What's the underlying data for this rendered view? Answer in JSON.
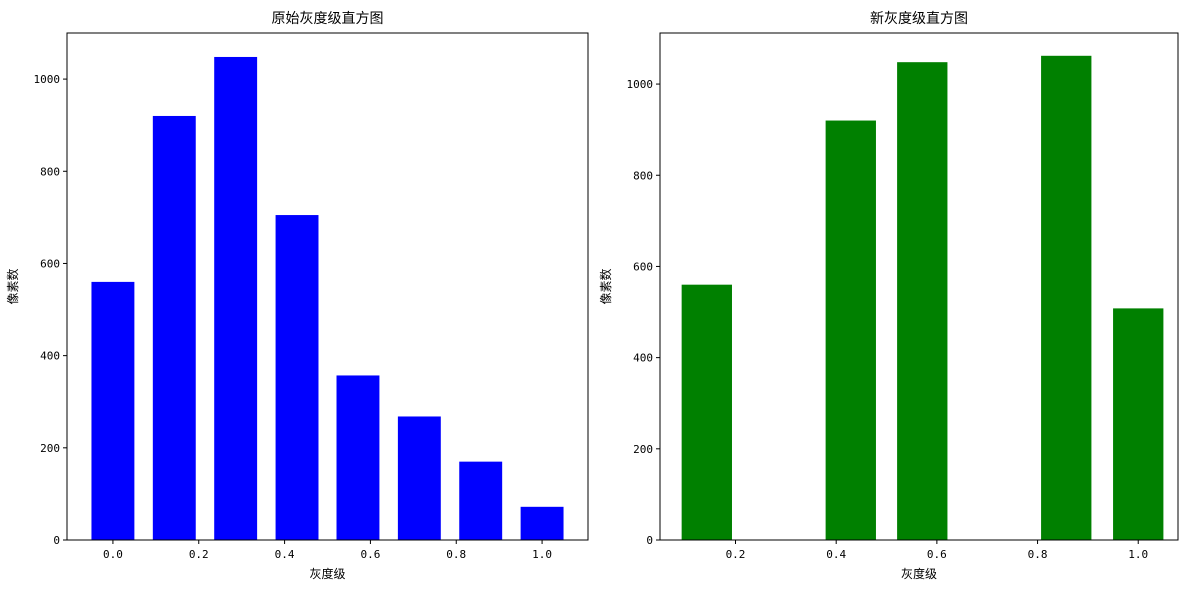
{
  "chart_data": [
    {
      "type": "bar",
      "title": "原始灰度级直方图",
      "xlabel": "灰度级",
      "ylabel": "像素数",
      "color": "#0000ff",
      "bar_width": 0.1,
      "x": [
        0.0,
        0.143,
        0.286,
        0.429,
        0.571,
        0.714,
        0.857,
        1.0
      ],
      "values": [
        560,
        920,
        1048,
        705,
        357,
        268,
        170,
        72
      ],
      "xlim": [
        -0.107,
        1.107
      ],
      "ylim": [
        0,
        1100
      ],
      "xticks": [
        0.0,
        0.2,
        0.4,
        0.6,
        0.8,
        1.0
      ],
      "xtick_labels": [
        "0.0",
        "0.2",
        "0.4",
        "0.6",
        "0.8",
        "1.0"
      ],
      "yticks": [
        0,
        200,
        400,
        600,
        800,
        1000
      ],
      "ytick_labels": [
        "0",
        "200",
        "400",
        "600",
        "800",
        "1000"
      ],
      "grid": false
    },
    {
      "type": "bar",
      "title": "新灰度级直方图",
      "xlabel": "灰度级",
      "ylabel": "像素数",
      "color": "#008000",
      "bar_width": 0.1,
      "x": [
        0.143,
        0.429,
        0.571,
        0.857,
        1.0
      ],
      "values": [
        560,
        920,
        1048,
        1062,
        508
      ],
      "xlim": [
        0.05,
        1.079
      ],
      "ylim": [
        0,
        1112
      ],
      "xticks": [
        0.2,
        0.4,
        0.6,
        0.8,
        1.0
      ],
      "xtick_labels": [
        "0.2",
        "0.4",
        "0.6",
        "0.8",
        "1.0"
      ],
      "yticks": [
        0,
        200,
        400,
        600,
        800,
        1000
      ],
      "ytick_labels": [
        "0",
        "200",
        "400",
        "600",
        "800",
        "1000"
      ],
      "grid": false
    }
  ]
}
